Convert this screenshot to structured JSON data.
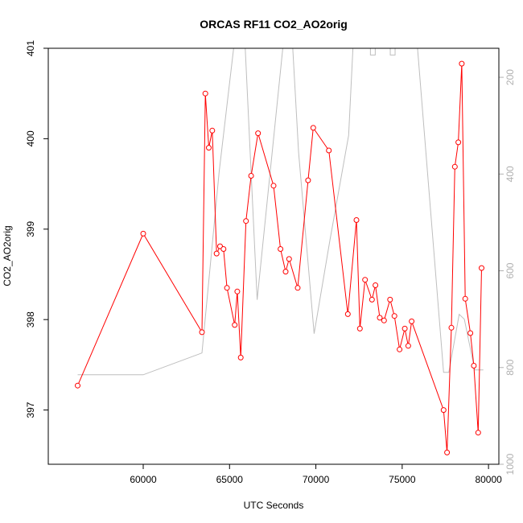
{
  "chart_data": {
    "type": "line",
    "title": "ORCAS RF11 CO2_AO2orig",
    "xlabel": "UTC Seconds",
    "ylabel": "CO2_AO2orig",
    "xlim": [
      54500,
      80600
    ],
    "ylim": [
      396.4,
      401.0
    ],
    "y2lim": [
      1000,
      140
    ],
    "y2_reversed": true,
    "x_ticks": [
      60000,
      65000,
      70000,
      75000,
      80000
    ],
    "x_tick_labels": [
      "60000",
      "65000",
      "70000",
      "75000",
      "80000"
    ],
    "y_ticks": [
      397,
      398,
      399,
      400,
      401
    ],
    "y_tick_labels": [
      "397",
      "398",
      "399",
      "400",
      "401"
    ],
    "y2_ticks": [
      200,
      400,
      600,
      800,
      1000
    ],
    "y2_tick_labels": [
      "200",
      "400",
      "600",
      "800",
      "1000"
    ],
    "grid": false,
    "series": [
      {
        "color": "#ff0000",
        "marker": "circle-open",
        "x": [
          56200,
          60000,
          63400,
          63600,
          63800,
          64000,
          64250,
          64450,
          64650,
          64850,
          65300,
          65450,
          65650,
          65950,
          66250,
          66650,
          67550,
          67950,
          68250,
          68450,
          68950,
          69550,
          69850,
          70750,
          71850,
          72350,
          72550,
          72850,
          73250,
          73450,
          73700,
          73950,
          74300,
          74550,
          74850,
          75150,
          75350,
          75550,
          77400,
          77600,
          77850,
          78050,
          78250,
          78450,
          78650,
          78950,
          79150,
          79400,
          79600
        ],
        "y": [
          397.27,
          398.95,
          397.86,
          400.5,
          399.9,
          400.09,
          398.73,
          398.81,
          398.78,
          398.35,
          397.94,
          398.31,
          397.58,
          399.09,
          399.59,
          400.06,
          399.48,
          398.78,
          398.53,
          398.67,
          398.35,
          399.54,
          400.12,
          399.87,
          398.06,
          399.1,
          397.9,
          398.44,
          398.22,
          398.38,
          398.02,
          397.99,
          398.22,
          398.04,
          397.67,
          397.9,
          397.71,
          397.98,
          397.0,
          396.53,
          397.91,
          399.69,
          399.96,
          400.83,
          398.23,
          397.85,
          397.49,
          396.75,
          398.57
        ]
      },
      {
        "color": "#bebebe",
        "axis": "right",
        "x": [
          56200,
          60000,
          63400,
          64400,
          65500,
          65800,
          66600,
          68200,
          68600,
          69000,
          69900,
          70800,
          71900,
          72200,
          75800,
          77400,
          77700,
          78300,
          78600,
          79200,
          79700
        ],
        "y": [
          815,
          815,
          770,
          395,
          60,
          60,
          660,
          100,
          100,
          355,
          730,
          540,
          320,
          100,
          100,
          810,
          810,
          690,
          700,
          805,
          805
        ]
      }
    ],
    "right_axis_marks": [
      {
        "x": 73300,
        "y": 154
      },
      {
        "x": 74450,
        "y": 154
      }
    ]
  }
}
